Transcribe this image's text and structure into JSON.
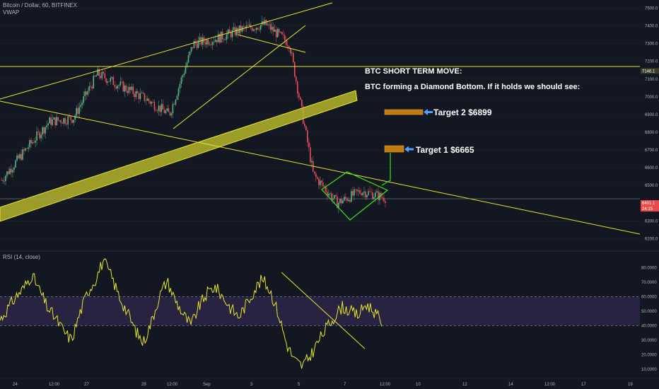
{
  "header": {
    "symbol": "Bitcoin / Dollar, 60, BITFINEX",
    "indicator": "VWAP",
    "rsi_label": "RSI (14, close)"
  },
  "annotations": {
    "title": "BTC SHORT TERM MOVE:",
    "subtitle": "BTC forming a Diamond Bottom. If it holds we should see:",
    "target2": "Target 2 $6899",
    "target1": "Target 1 $6665"
  },
  "colors": {
    "background": "#131722",
    "trendline": "#e6e62e",
    "zone_fill": "#b5b52a",
    "up_candle": "#53b987",
    "down_candle": "#eb4d5c",
    "pattern": "#33e81a",
    "target_box": "#c27a12",
    "arrow": "#4aa3ff",
    "rsi_line": "#e6e62e",
    "rsi_band": "#2a2545",
    "price_tag": "#e84b4b"
  },
  "chart_data": [
    {
      "type": "candlestick",
      "price_axis": {
        "ticks": [
          "7500.0",
          "7400.0",
          "7300.0",
          "7200.0",
          "7100.0",
          "7000.0",
          "6900.0",
          "6800.0",
          "6700.0",
          "6600.0",
          "6500.0",
          "6300.0",
          "6200.0"
        ],
        "ylim": [
          6150,
          7530
        ]
      },
      "price_tags": [
        "7146.1",
        "6401.1",
        "24:15"
      ],
      "horizontal_line": 7146.1,
      "current_level": 6401.1,
      "x_axis_ticks": [
        "24",
        "12:00",
        "27",
        "29",
        "12:00",
        "Sep",
        "3",
        "5",
        "7",
        "12:00",
        "10",
        "12",
        "14",
        "12:00",
        "17",
        "19"
      ],
      "trend": [
        6530,
        6700,
        6860,
        6880,
        7130,
        7060,
        6990,
        6900,
        7300,
        7330,
        7380,
        7410,
        7300,
        6560,
        6400,
        6470,
        6430
      ],
      "targets": [
        6665,
        6899
      ]
    },
    {
      "type": "line",
      "name": "RSI (14, close)",
      "ticks": [
        "80.0000",
        "70.0000",
        "60.0000",
        "50.0000",
        "40.0000",
        "30.0000",
        "20.0000",
        "10.0000"
      ],
      "ylim": [
        5,
        88
      ],
      "band": [
        40,
        60
      ],
      "values": [
        44,
        52,
        60,
        66,
        75,
        64,
        52,
        45,
        36,
        30,
        48,
        63,
        72,
        85,
        74,
        60,
        49,
        37,
        28,
        42,
        60,
        71,
        58,
        48,
        40,
        53,
        62,
        67,
        60,
        52,
        46,
        55,
        65,
        72,
        64,
        48,
        28,
        16,
        12,
        19,
        29,
        38,
        46,
        53,
        50,
        47,
        55,
        50,
        42
      ]
    }
  ]
}
